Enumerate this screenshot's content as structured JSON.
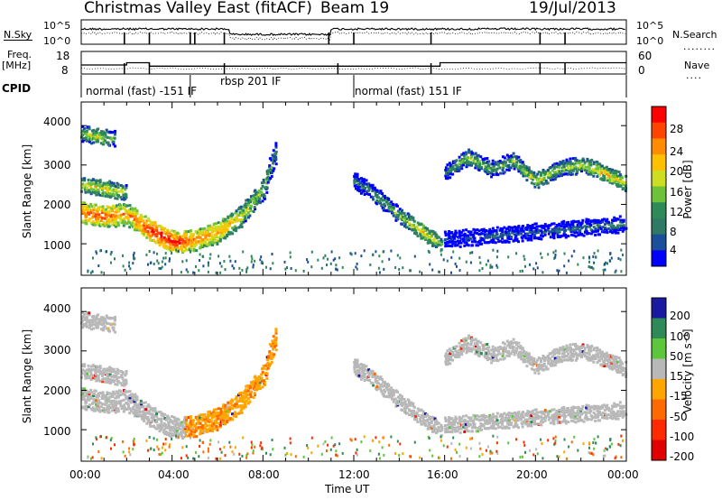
{
  "header": {
    "title": "Christmas Valley East (fitACF)",
    "beam": "Beam 19",
    "date": "19/Jul/2013"
  },
  "top_panels": {
    "nsky_label": "N.Sky",
    "nsearch_label": "N.Search",
    "noise_ticks_left": [
      "10^5",
      "10^0"
    ],
    "noise_ticks_right": [
      "10^5",
      "10^0"
    ],
    "freq_label_1": "Freq.",
    "freq_label_2": "[MHz]",
    "freq_ticks": [
      "18",
      "8"
    ],
    "nave_label": "Nave",
    "nave_ticks": [
      "60",
      "0"
    ],
    "cpid_label": "CPID",
    "cpid_segments": [
      "normal (fast) -151 IF",
      "rbsp 201 IF",
      "normal (fast) 151 IF"
    ]
  },
  "power_panel": {
    "ylabel": "Slant Range [km]",
    "colorbar_label": "Power [dB]",
    "colorbar_ticks": [
      "28",
      "24",
      "20",
      "16",
      "12",
      "8",
      "4"
    ],
    "colorbar_colors": [
      "#ff0000",
      "#ff4400",
      "#ff8c00",
      "#ffc000",
      "#ccdd22",
      "#6ec23a",
      "#2e8b57",
      "#2f7a64",
      "#1b4f9a",
      "#0000ff"
    ]
  },
  "velocity_panel": {
    "ylabel": "Slant Range [km]",
    "colorbar_label": "Velocity [m s⁻¹]",
    "colorbar_ticks": [
      "200",
      "100",
      "50",
      "15",
      "-15",
      "-50",
      "-100",
      "-200"
    ],
    "colorbar_colors": [
      "#1a1aa0",
      "#2e8b57",
      "#5cc63c",
      "#b8b8b8",
      "#ffa500",
      "#ff6a00",
      "#ff2a00",
      "#e00000"
    ]
  },
  "xaxis": {
    "xlabel": "Time UT",
    "tick_labels": [
      "00:00",
      "04:00",
      "08:00",
      "12:00",
      "16:00",
      "20:00",
      "00:00"
    ]
  },
  "chart_data": {
    "type": "heatmap",
    "title": "Christmas Valley East (fitACF)",
    "subtitle": "Beam 19   19/Jul/2013",
    "xlabel": "Time UT",
    "x_range_hours": [
      0,
      24
    ],
    "y_range_km": [
      200,
      4600
    ],
    "yticks": [
      1000,
      2000,
      3000,
      4000
    ],
    "xticks": [
      "00:00",
      "04:00",
      "08:00",
      "12:00",
      "16:00",
      "20:00",
      "00:00"
    ],
    "panels": [
      {
        "name": "Power",
        "unit": "dB",
        "colorbar_range": [
          0,
          30
        ],
        "features": [
          {
            "desc": "main echo band",
            "time_h": [
              0,
              1,
              2,
              3,
              4,
              5,
              6,
              7,
              8,
              8.5
            ],
            "range_km": [
              1800,
              1700,
              1750,
              1350,
              1050,
              1100,
              1300,
              1700,
              2400,
              3300
            ],
            "power_db": [
              24,
              26,
              22,
              28,
              28,
              24,
              22,
              18,
              14,
              10
            ]
          },
          {
            "desc": "upper band morning",
            "time_h": [
              0,
              1,
              2
            ],
            "range_km": [
              2500,
              2400,
              2300
            ],
            "power_db": [
              18,
              20,
              14
            ]
          },
          {
            "desc": "early band near 3800 km",
            "time_h": [
              0,
              0.8,
              1.5
            ],
            "range_km": [
              3800,
              3700,
              3650
            ],
            "power_db": [
              14,
              18,
              12
            ]
          },
          {
            "desc": "afternoon descending",
            "time_h": [
              12,
              13,
              14,
              15,
              15.8
            ],
            "range_km": [
              2600,
              2200,
              1700,
              1300,
              1000
            ],
            "power_db": [
              8,
              12,
              14,
              20,
              16
            ]
          },
          {
            "desc": "evening oscillating band",
            "time_h": [
              16,
              17,
              18,
              19,
              20,
              21,
              22,
              23,
              24
            ],
            "range_km": [
              2800,
              3200,
              2900,
              3100,
              2600,
              2900,
              3000,
              2800,
              2500
            ],
            "power_db": [
              8,
              16,
              12,
              14,
              18,
              14,
              16,
              20,
              18
            ]
          },
          {
            "desc": "evening low band",
            "time_h": [
              16,
              18,
              20,
              22,
              24
            ],
            "range_km": [
              1100,
              1200,
              1300,
              1400,
              1500
            ],
            "power_db": [
              4,
              6,
              6,
              8,
              8
            ]
          }
        ]
      },
      {
        "name": "Velocity",
        "unit": "m s^-1",
        "colorbar_range": [
          -200,
          200
        ],
        "features": [
          {
            "desc": "mostly ground scatter (|v|<15) along main echo band",
            "typical_velocity": 0
          },
          {
            "desc": "weak negative velocities in morning rising band",
            "typical_velocity": -40
          },
          {
            "desc": "scattered positive velocities near 400 km after 06:00",
            "typical_velocity": 60
          }
        ]
      }
    ],
    "noise_panel": {
      "nsky_approx": "10^3",
      "nsearch_approx": "10^2"
    },
    "freq_panel": {
      "freq_mhz_segments": [
        {
          "t": [
            0,
            2
          ],
          "f": 12
        },
        {
          "t": [
            2,
            3
          ],
          "f": 13
        },
        {
          "t": [
            3,
            15.8
          ],
          "f": 11.5
        },
        {
          "t": [
            15.8,
            24
          ],
          "f": 13
        }
      ]
    },
    "cpid_segments": [
      {
        "label": "normal (fast) -151 IF",
        "t_start": 0,
        "t_end": 4.8
      },
      {
        "label": "rbsp 201 IF",
        "t_start": 4.8,
        "t_end": 12
      },
      {
        "label": "normal (fast) 151 IF",
        "t_start": 12,
        "t_end": 24
      }
    ]
  }
}
